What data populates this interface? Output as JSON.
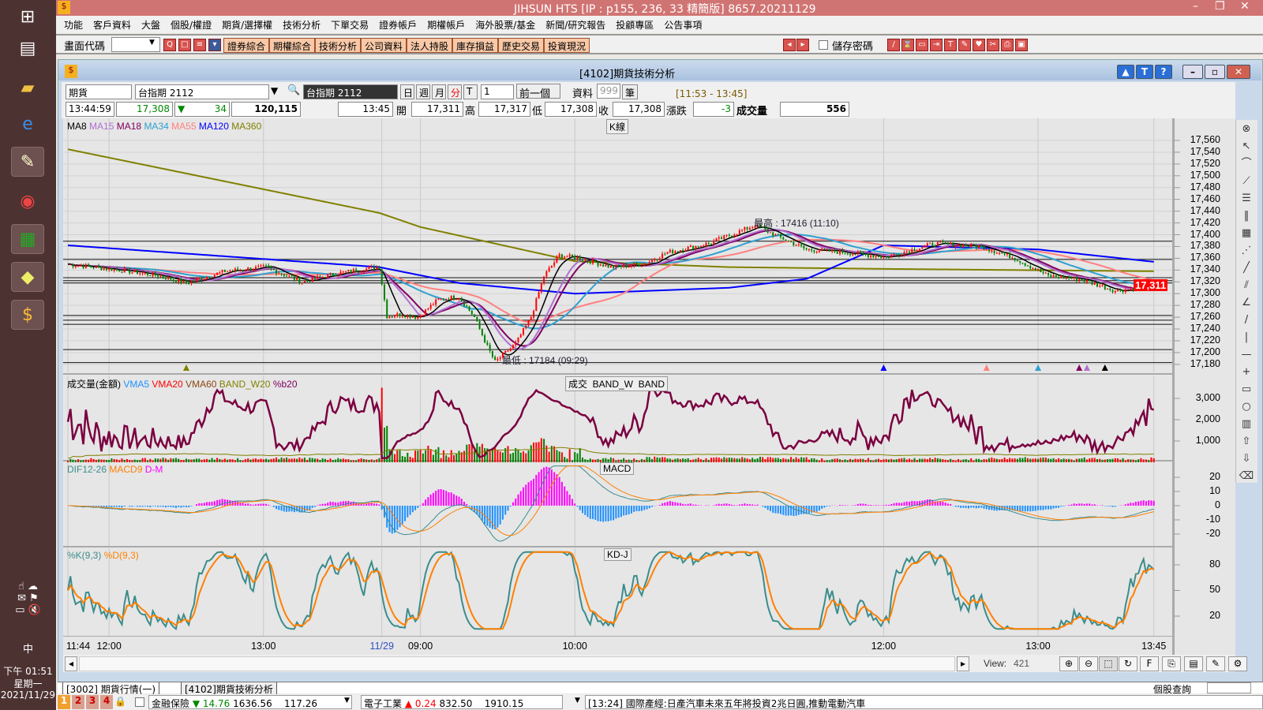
{
  "taskbar": {
    "icons": [
      "windows-start-icon",
      "file-explorer-icon",
      "folder-icon",
      "ie-browser-icon",
      "paint-icon",
      "chrome-icon",
      "spreadsheet-icon",
      "notes-icon",
      "jihsun-app-icon"
    ],
    "tray_ime": "中",
    "clock_time": "下午 01:51",
    "clock_day": "星期一",
    "clock_date": "2021/11/29"
  },
  "app": {
    "title": "JIHSUN HTS    [IP : p155, 236, 33 精簡版] 8657.20211129"
  },
  "menu": [
    "功能",
    "客戶資料",
    "大盤",
    "個股/權證",
    "期貨/選擇權",
    "技術分析",
    "下單交易",
    "證券帳戶",
    "期權帳戶",
    "海外股票/基金",
    "新聞/研究報告",
    "投顧專區",
    "公告事項"
  ],
  "toolbar": {
    "screen_code_label": "畫面代碼",
    "screen_code_value": "",
    "buttons": [
      "證券綜合",
      "期權綜合",
      "技術分析",
      "公司資料",
      "法人持股",
      "庫存損益",
      "歷史交易",
      "投資現況"
    ],
    "save_password_label": "儲存密碼"
  },
  "window": {
    "title": "[4102]期貨技術分析"
  },
  "controls": {
    "market_select": "期貨",
    "contract_select": "台指期 2112",
    "contract_display": "台指期 2112",
    "period_buttons": [
      "日",
      "週",
      "月",
      "分",
      "T"
    ],
    "interval_select": "1",
    "prev_button": "前一個",
    "data_label": "資料",
    "data_count": "999",
    "data_unit": "筆",
    "range": "[11:53 - 13:45]"
  },
  "quote": {
    "time": "13:44:59",
    "last": "17,308",
    "change": "34",
    "volume_total": "120,115",
    "bar_time": "13:45",
    "open_label": "開",
    "open": "17,311",
    "high_label": "高",
    "high": "17,317",
    "low_label": "低",
    "low": "17,308",
    "close_label": "收",
    "close": "17,308",
    "chg_label": "漲跌",
    "chg": "-3",
    "vol_label": "成交量",
    "vol": "556"
  },
  "colors": {
    "up": "#ff0000",
    "down": "#008000",
    "ma8": "#000000",
    "ma15": "#b070d0",
    "ma18": "#800060",
    "ma34": "#30a0d0",
    "ma55": "#ff8080",
    "ma120": "#0000ff",
    "ma360": "#808000",
    "macd_pos": "#ff00ff",
    "macd_neg": "#1e90ff",
    "k": "#3c8c8c",
    "d": "#ff8000",
    "vol_line": "#7a0040"
  },
  "chart_data": {
    "type": "candlestick",
    "price_panel": {
      "title": "K線",
      "legend": [
        "MA8",
        "MA15",
        "MA18",
        "MA34",
        "MA55",
        "MA120",
        "MA360"
      ],
      "y_ticks": [
        17560,
        17540,
        17520,
        17500,
        17480,
        17460,
        17440,
        17420,
        17400,
        17380,
        17360,
        17340,
        17320,
        17300,
        17280,
        17260,
        17240,
        17220,
        17200,
        17180
      ],
      "ylim": [
        17180,
        17560
      ],
      "current_price": "17,311",
      "high_note": "最高 : 17416 (11:10)",
      "low_note": "最低 : 17184 (09:29)",
      "close_keypoints": [
        [
          "1",
          "11:44",
          17350
        ],
        [
          "1",
          "12:04",
          17340
        ],
        [
          "1",
          "12:20",
          17330
        ],
        [
          "1",
          "12:30",
          17318
        ],
        [
          "1",
          "12:45",
          17338
        ],
        [
          "1",
          "13:01",
          17345
        ],
        [
          "1",
          "13:15",
          17320
        ],
        [
          "1",
          "13:29",
          17335
        ],
        [
          "1",
          "13:45",
          17345
        ],
        [
          "2",
          "08:47",
          17262
        ],
        [
          "2",
          "08:53",
          17265
        ],
        [
          "2",
          "08:59",
          17260
        ],
        [
          "2",
          "09:07",
          17290
        ],
        [
          "2",
          "09:15",
          17295
        ],
        [
          "2",
          "09:21",
          17260
        ],
        [
          "2",
          "09:26",
          17210
        ],
        [
          "2",
          "09:29",
          17184
        ],
        [
          "2",
          "09:37",
          17215
        ],
        [
          "2",
          "09:43",
          17260
        ],
        [
          "2",
          "09:48",
          17330
        ],
        [
          "2",
          "09:54",
          17365
        ],
        [
          "2",
          "10:02",
          17360
        ],
        [
          "2",
          "10:14",
          17345
        ],
        [
          "2",
          "10:27",
          17350
        ],
        [
          "2",
          "10:36",
          17370
        ],
        [
          "2",
          "10:52",
          17385
        ],
        [
          "2",
          "11:10",
          17416
        ],
        [
          "2",
          "11:20",
          17395
        ],
        [
          "2",
          "11:30",
          17375
        ],
        [
          "2",
          "11:45",
          17370
        ],
        [
          "2",
          "12:01",
          17362
        ],
        [
          "2",
          "12:20",
          17385
        ],
        [
          "2",
          "12:38",
          17380
        ],
        [
          "2",
          "12:51",
          17360
        ],
        [
          "2",
          "13:04",
          17330
        ],
        [
          "2",
          "13:16",
          17325
        ],
        [
          "2",
          "13:30",
          17305
        ],
        [
          "2",
          "13:43",
          17311
        ],
        [
          "2",
          "13:45",
          17308
        ]
      ],
      "ma120_keypoints": [
        [
          "1",
          "11:44",
          17382
        ],
        [
          "1",
          "13:45",
          17345
        ],
        [
          "2",
          "09:15",
          17318
        ],
        [
          "2",
          "10:00",
          17300
        ],
        [
          "2",
          "11:00",
          17310
        ],
        [
          "2",
          "11:30",
          17325
        ],
        [
          "2",
          "12:00",
          17382
        ],
        [
          "2",
          "13:00",
          17375
        ],
        [
          "2",
          "13:45",
          17354
        ]
      ],
      "ma360_keypoints": [
        [
          "1",
          "11:44",
          17545
        ],
        [
          "1",
          "13:45",
          17437
        ],
        [
          "2",
          "09:00",
          17413
        ],
        [
          "2",
          "10:00",
          17355
        ],
        [
          "2",
          "11:00",
          17345
        ],
        [
          "2",
          "12:00",
          17342
        ],
        [
          "2",
          "13:45",
          17338
        ]
      ],
      "levels": [
        17389,
        17358,
        17327,
        17322,
        17318,
        17263,
        17255,
        17248,
        17205,
        17183
      ],
      "signal_markers": [
        [
          "1",
          "12:30",
          "#808000"
        ],
        [
          "2",
          "12:00",
          "#0000ff"
        ],
        [
          "2",
          "12:40",
          "#ff8080"
        ],
        [
          "2",
          "13:00",
          "#30a0d0"
        ],
        [
          "2",
          "13:16",
          "#800060"
        ],
        [
          "2",
          "13:19",
          "#b070d0"
        ],
        [
          "2",
          "13:26",
          "#000000"
        ]
      ]
    },
    "volume_panel": {
      "legend": [
        "成交量(金額)",
        "VMA5",
        "VMA20",
        "VMA60",
        "BAND_W20",
        "%b20"
      ],
      "tag": "成交  BAND_W  BAND",
      "y_ticks": [
        3000,
        2000,
        1000
      ]
    },
    "macd_panel": {
      "legend": [
        "DIF12-26",
        "MACD9",
        "D-M"
      ],
      "tag": "MACD",
      "y_ticks": [
        20,
        10,
        0,
        -10,
        -20
      ]
    },
    "kd_panel": {
      "legend": [
        "%K(9,3)",
        "%D(9,3)"
      ],
      "tag": "KD-J",
      "y_ticks": [
        80,
        50,
        20
      ]
    },
    "x_ticks": [
      [
        "1",
        "11:44",
        "11:44"
      ],
      [
        "1",
        "12:00",
        "12:00"
      ],
      [
        "1",
        "13:00",
        "13:00"
      ],
      [
        "2",
        "08:45",
        "11/29"
      ],
      [
        "2",
        "09:00",
        "09:00"
      ],
      [
        "2",
        "10:00",
        "10:00"
      ],
      [
        "2",
        "12:00",
        "12:00"
      ],
      [
        "2",
        "13:00",
        "13:00"
      ],
      [
        "2",
        "13:45",
        "13:45"
      ]
    ]
  },
  "bottom": {
    "view_label": "View:",
    "view_value": "421",
    "query_label": "個股查詢"
  },
  "tabs": [
    "[3002] 期貨行情(一)",
    "[4102]期貨技術分析"
  ],
  "status": {
    "layouts": [
      "1",
      "2",
      "3",
      "4"
    ],
    "idx1_name": "金融保險",
    "idx1_chg": "14.76",
    "idx1_val": "1636.56",
    "idx1_vol": "117.26",
    "idx2_name": "電子工業",
    "idx2_chg": "0.24",
    "idx2_val": "832.50",
    "idx2_vol": "1910.15",
    "news": "[13:24] 國際產經:日產汽車未來五年將投資2兆日圓,推動電動汽車"
  }
}
